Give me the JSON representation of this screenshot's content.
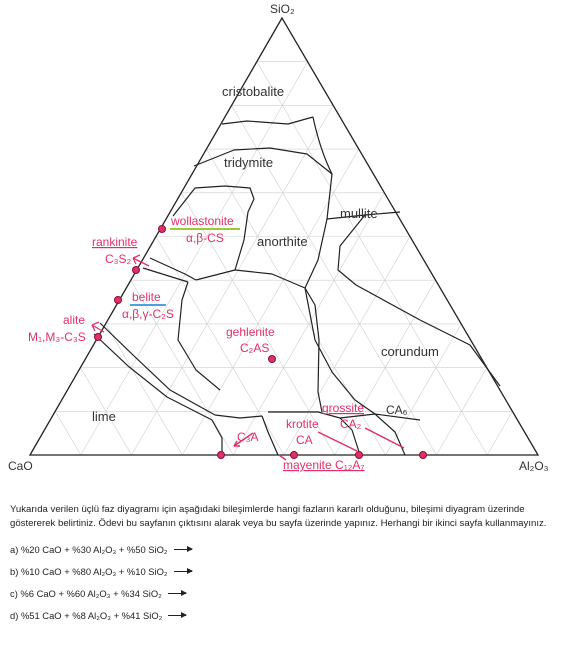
{
  "corners": {
    "top": "SiO₂",
    "left": "CaO",
    "right": "Al₂O₃"
  },
  "phases": {
    "cristobalite": "cristobalite",
    "tridymite": "tridymite",
    "mullite": "mullite",
    "anorthite": "anorthite",
    "corundum": "corundum",
    "lime": "lime",
    "gehlenite": "gehlenite",
    "gehlenite_formula": "C₂AS",
    "c3a": "C₃A",
    "ca6": "CA₆"
  },
  "annotations": {
    "wollastonite": "wollastonite",
    "wollastonite_formula": "α,β-CS",
    "rankinite": "rankinite",
    "rankinite_formula": "C₃S₂",
    "belite": "belite",
    "belite_formula": "α,β,γ-C₂S",
    "alite": "alite",
    "alite_formula": "M₁,M₃-C₃S",
    "grossite": "grossite",
    "grossite_formula": "CA₂",
    "krotite": "krotite",
    "krotite_formula": "CA",
    "mayenite": "mayenite C₁₂A₇"
  },
  "colors": {
    "annotation": "#e0306a",
    "wollastonite_underline": "#9acd32",
    "belite_underline": "#4aa3df",
    "boundary": "#222222",
    "grid": "#cccccc"
  },
  "question": {
    "instructions": "Yukarıda verilen üçlü faz diyagramı için aşağıdaki bileşimlerde hangi fazların kararlı olduğunu, bileşimi diyagram üzerinde göstererek belirtiniz. Ödevi bu sayfanın çıktısını alarak veya bu sayfa üzerinde yapınız. Herhangi bir ikinci sayfa kullanmayınız.",
    "items": [
      "a)  %20 CaO + %30 Al₂O₃ + %50 SiO₂",
      "b) %10 CaO + %80 Al₂O₃ + %10 SiO₂",
      "c) %6 CaO + %60 Al₂O₃ + %34 SiO₂",
      "d) %51 CaO + %8 Al₂O₃ + %41 SiO₂"
    ]
  }
}
